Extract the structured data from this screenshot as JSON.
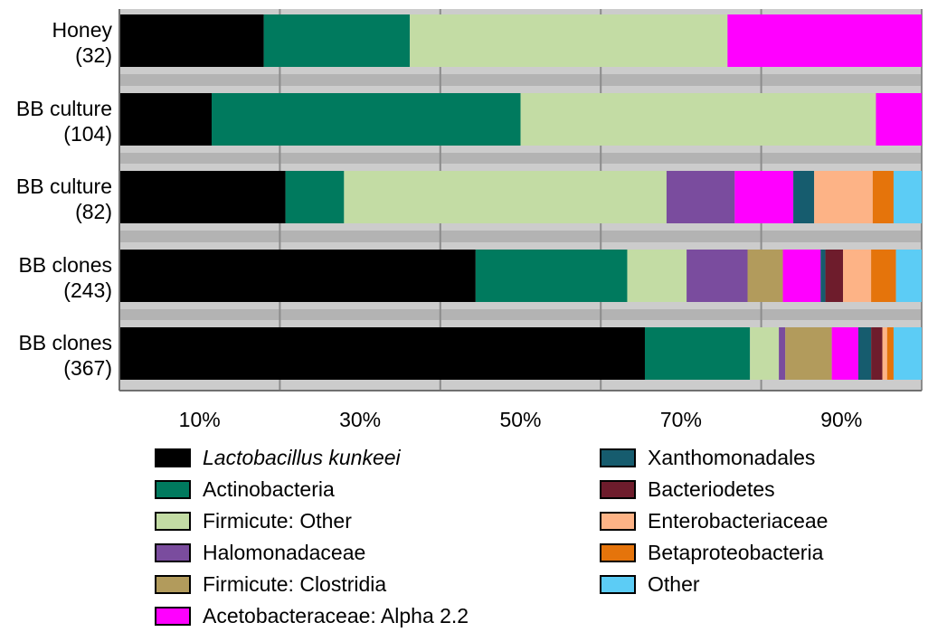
{
  "chart_data": {
    "type": "bar",
    "orientation": "horizontal",
    "stacked": true,
    "title": "",
    "xlabel": "",
    "ylabel": "",
    "xlim": [
      0,
      100
    ],
    "grid": true,
    "categories": [
      {
        "name": "Honey",
        "count": "(32)"
      },
      {
        "name": "BB culture",
        "count": "(104)"
      },
      {
        "name": "BB culture",
        "count": "(82)"
      },
      {
        "name": "BB clones",
        "count": "(243)"
      },
      {
        "name": "BB clones",
        "count": "(367)"
      }
    ],
    "series": [
      {
        "name": "Lactobacillus kunkeei",
        "italic": true,
        "color": "#000000",
        "values": [
          18.0,
          11.5,
          20.7,
          44.4,
          65.5
        ]
      },
      {
        "name": "Actinobacteria",
        "color": "#007A5E",
        "values": [
          18.2,
          38.5,
          7.3,
          18.9,
          13.1
        ]
      },
      {
        "name": "Firmicute: Other",
        "color": "#C3DCA4",
        "values": [
          39.6,
          44.3,
          40.2,
          7.4,
          3.6
        ]
      },
      {
        "name": "Halomonadaceae",
        "color": "#7A4C9E",
        "values": [
          0,
          0,
          8.5,
          7.6,
          0.8
        ]
      },
      {
        "name": "Firmicute: Clostridia",
        "color": "#B29B5C",
        "values": [
          0,
          0,
          0,
          4.4,
          5.8
        ]
      },
      {
        "name": "Acetobacteraceae: Alpha 2.2",
        "color": "#FF00FF",
        "values": [
          24.2,
          5.7,
          7.3,
          4.7,
          3.3
        ]
      },
      {
        "name": "Xanthomonadales",
        "color": "#165C6E",
        "values": [
          0,
          0,
          2.6,
          0.6,
          1.6
        ]
      },
      {
        "name": "Bacteriodetes",
        "color": "#6E1C2C",
        "values": [
          0,
          0,
          0,
          2.2,
          1.4
        ]
      },
      {
        "name": "Enterobacteriaceae",
        "color": "#FDB386",
        "values": [
          0,
          0,
          7.3,
          3.5,
          0.6
        ]
      },
      {
        "name": "Betaproteobacteria",
        "color": "#E5740B",
        "values": [
          0,
          0,
          2.6,
          3.1,
          0.8
        ]
      },
      {
        "name": "Other",
        "color": "#5CCCF5",
        "values": [
          0,
          0,
          3.5,
          3.2,
          3.5
        ]
      }
    ],
    "xticks": [
      {
        "value": 10,
        "label": "10%"
      },
      {
        "value": 30,
        "label": "30%"
      },
      {
        "value": 50,
        "label": "50%"
      },
      {
        "value": 70,
        "label": "70%"
      },
      {
        "value": 90,
        "label": "90%"
      }
    ],
    "gridlines": [
      0,
      20,
      40,
      60,
      80,
      100
    ],
    "legend": {
      "placement": "bottom",
      "columns": 2
    }
  }
}
